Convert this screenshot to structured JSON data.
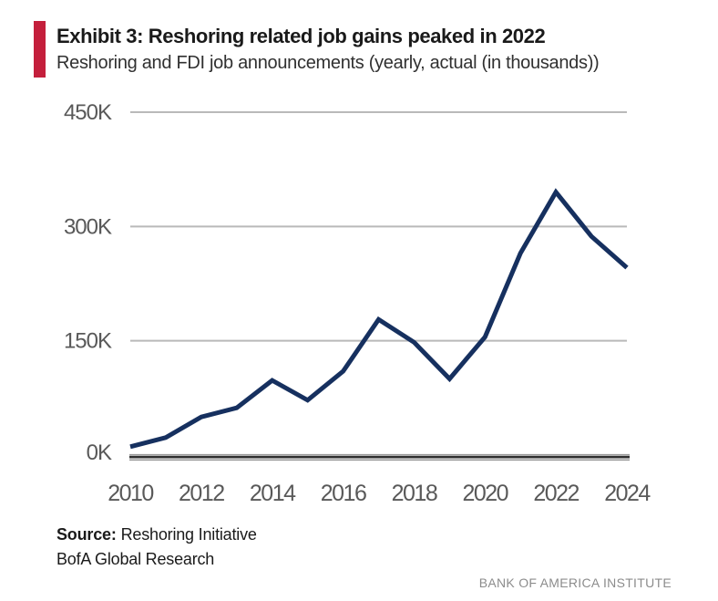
{
  "exhibit": {
    "title": "Exhibit 3: Reshoring related job gains peaked in 2022",
    "subtitle": "Reshoring and FDI job announcements (yearly, actual (in thousands))",
    "accent_color": "#c41f3c"
  },
  "chart_data": {
    "type": "line",
    "title": "Exhibit 3: Reshoring related job gains peaked in 2022",
    "subtitle": "Reshoring and FDI job announcements (yearly, actual (in thousands))",
    "series_name": "Reshoring and FDI job announcements (thousands)",
    "x": [
      2010,
      2011,
      2012,
      2013,
      2014,
      2015,
      2016,
      2017,
      2018,
      2019,
      2020,
      2021,
      2022,
      2023,
      2024
    ],
    "values": [
      11,
      23,
      50,
      62,
      98,
      72,
      110,
      178,
      148,
      100,
      155,
      265,
      345,
      287,
      246
    ],
    "unit": "K",
    "ylim": [
      0,
      450
    ],
    "y_ticks": [
      {
        "value": 0,
        "label": "0K"
      },
      {
        "value": 150,
        "label": "150K"
      },
      {
        "value": 300,
        "label": "300K"
      },
      {
        "value": 450,
        "label": "450K"
      }
    ],
    "x_ticks": [
      {
        "value": 2010,
        "label": "2010"
      },
      {
        "value": 2012,
        "label": "2012"
      },
      {
        "value": 2014,
        "label": "2014"
      },
      {
        "value": 2016,
        "label": "2016"
      },
      {
        "value": 2018,
        "label": "2018"
      },
      {
        "value": 2020,
        "label": "2020"
      },
      {
        "value": 2022,
        "label": "2022"
      },
      {
        "value": 2024,
        "label": "2024"
      }
    ],
    "grid": "horizontal",
    "legend": "none",
    "line_color": "#16305f",
    "gridline_color": "#b9b9b9",
    "axis_dark_color": "#2f2f2f",
    "axis_gray_color": "#9a9a9a",
    "tick_text_color": "#595959"
  },
  "footer": {
    "source_label": "Source:",
    "source_value": "Reshoring Initiative",
    "source_line2": "BofA Global Research",
    "brand": "BANK OF AMERICA INSTITUTE"
  }
}
